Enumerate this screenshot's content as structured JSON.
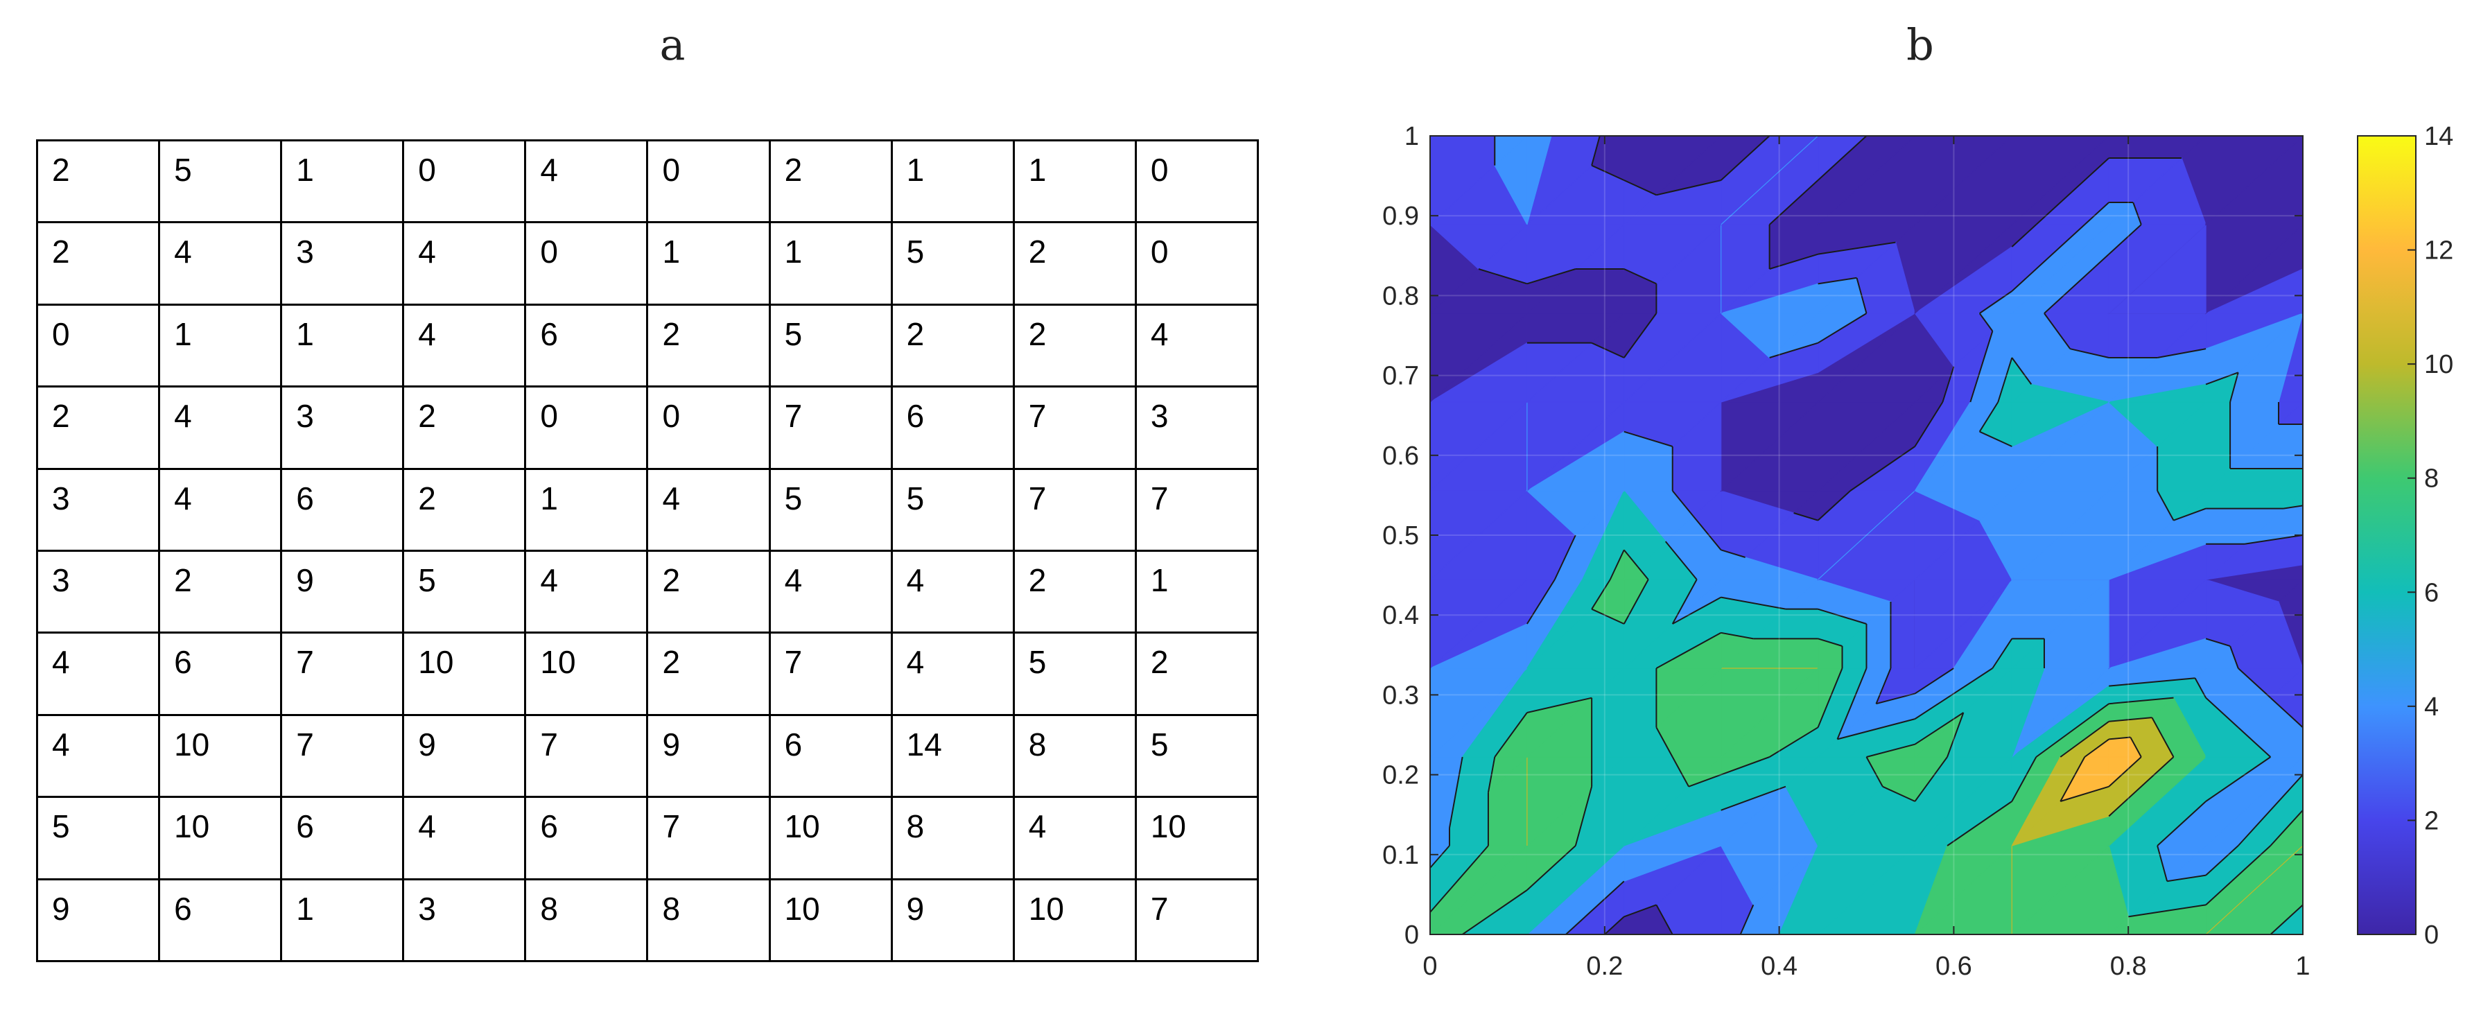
{
  "panels": {
    "a": "a",
    "b": "b"
  },
  "grid_table": {
    "rows": [
      [
        2,
        5,
        1,
        0,
        4,
        0,
        2,
        1,
        1,
        0
      ],
      [
        2,
        4,
        3,
        4,
        0,
        1,
        1,
        5,
        2,
        0
      ],
      [
        0,
        1,
        1,
        4,
        6,
        2,
        5,
        2,
        2,
        4
      ],
      [
        2,
        4,
        3,
        2,
        0,
        0,
        7,
        6,
        7,
        3
      ],
      [
        3,
        4,
        6,
        2,
        1,
        4,
        5,
        5,
        7,
        7
      ],
      [
        3,
        2,
        9,
        5,
        4,
        2,
        4,
        4,
        2,
        1
      ],
      [
        4,
        6,
        7,
        10,
        10,
        2,
        7,
        4,
        5,
        2
      ],
      [
        4,
        10,
        7,
        9,
        7,
        9,
        6,
        14,
        8,
        5
      ],
      [
        5,
        10,
        6,
        4,
        6,
        7,
        10,
        8,
        4,
        10
      ],
      [
        9,
        6,
        1,
        3,
        8,
        8,
        10,
        9,
        10,
        7
      ]
    ]
  },
  "chart_data": {
    "type": "heatmap",
    "subtype": "filled-contour",
    "title": "",
    "xlabel": "",
    "ylabel": "",
    "xlim": [
      0,
      1
    ],
    "ylim": [
      0,
      1
    ],
    "x_ticks": [
      "0",
      "0.2",
      "0.4",
      "0.6",
      "0.8",
      "1"
    ],
    "y_ticks": [
      "0",
      "0.1",
      "0.2",
      "0.3",
      "0.4",
      "0.5",
      "0.6",
      "0.7",
      "0.8",
      "0.9",
      "1"
    ],
    "colorbar": {
      "min": 0,
      "max": 14,
      "ticks": [
        "0",
        "2",
        "4",
        "6",
        "8",
        "10",
        "12",
        "14"
      ]
    },
    "contour_levels": [
      0,
      2,
      4,
      6,
      8,
      10,
      12,
      14
    ],
    "grid": true,
    "z_rows_top_to_bottom": [
      [
        2,
        5,
        1,
        0,
        4,
        0,
        2,
        1,
        1,
        0
      ],
      [
        2,
        4,
        3,
        4,
        0,
        1,
        1,
        5,
        2,
        0
      ],
      [
        0,
        1,
        1,
        4,
        6,
        2,
        5,
        2,
        2,
        4
      ],
      [
        2,
        4,
        3,
        2,
        0,
        0,
        7,
        6,
        7,
        3
      ],
      [
        3,
        4,
        6,
        2,
        1,
        4,
        5,
        5,
        7,
        7
      ],
      [
        3,
        2,
        9,
        5,
        4,
        2,
        4,
        4,
        2,
        1
      ],
      [
        4,
        6,
        7,
        10,
        10,
        2,
        7,
        4,
        5,
        2
      ],
      [
        4,
        10,
        7,
        9,
        7,
        9,
        6,
        14,
        8,
        5
      ],
      [
        5,
        10,
        6,
        4,
        6,
        7,
        10,
        8,
        4,
        10
      ],
      [
        9,
        6,
        1,
        3,
        8,
        8,
        10,
        9,
        10,
        7
      ]
    ]
  },
  "colors": {
    "palette": [
      "#3e26a8",
      "#4745eb",
      "#3e93fe",
      "#12beb9",
      "#3ec971",
      "#beba2c",
      "#ffb93b",
      "#f9fb15"
    ]
  }
}
